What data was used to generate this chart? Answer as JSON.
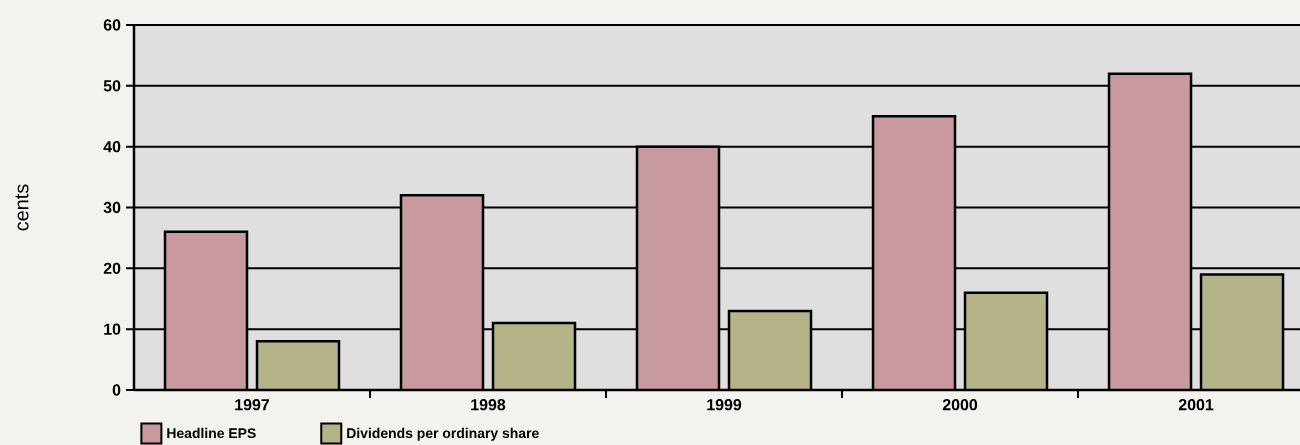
{
  "chart_data": {
    "type": "bar",
    "ylabel": "cents",
    "categories": [
      "1997",
      "1998",
      "1999",
      "2000",
      "2001"
    ],
    "series": [
      {
        "name": "Headline EPS",
        "color": "#c89aa0",
        "values": [
          26,
          32,
          40,
          45,
          52
        ]
      },
      {
        "name": "Dividends per ordinary share",
        "color": "#b5b388",
        "values": [
          8,
          11,
          13,
          16,
          19
        ]
      }
    ],
    "ylim": [
      0,
      60
    ],
    "yticks": [
      0,
      10,
      20,
      30,
      40,
      50,
      60
    ],
    "grid": "y",
    "legend": "bottom left"
  }
}
